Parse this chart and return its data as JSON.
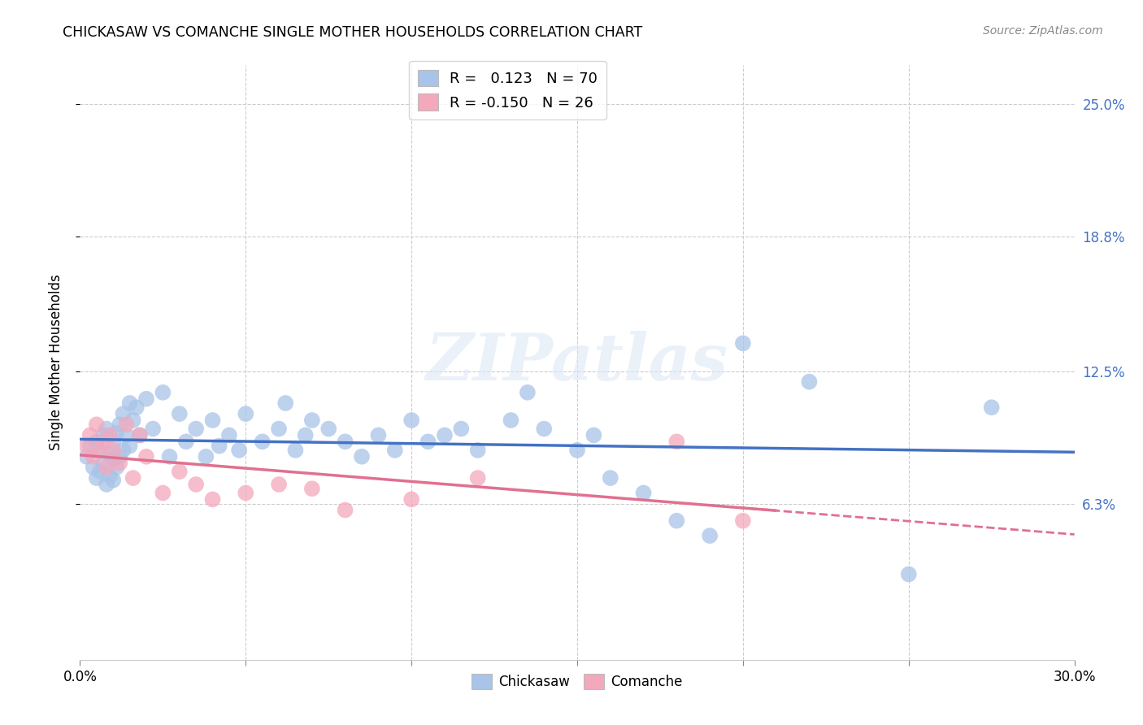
{
  "title": "CHICKASAW VS COMANCHE SINGLE MOTHER HOUSEHOLDS CORRELATION CHART",
  "source": "Source: ZipAtlas.com",
  "ylabel": "Single Mother Households",
  "ytick_labels": [
    "6.3%",
    "12.5%",
    "18.8%",
    "25.0%"
  ],
  "ytick_values": [
    0.063,
    0.125,
    0.188,
    0.25
  ],
  "xtick_values": [
    0.0,
    0.05,
    0.1,
    0.15,
    0.2,
    0.25,
    0.3
  ],
  "xmin": 0.0,
  "xmax": 0.3,
  "ymin": -0.01,
  "ymax": 0.268,
  "chickasaw_color": "#a8c4e8",
  "comanche_color": "#f4a8bc",
  "chickasaw_line_color": "#4472c4",
  "comanche_line_color": "#e07090",
  "r_chickasaw": 0.123,
  "n_chickasaw": 70,
  "r_comanche": -0.15,
  "n_comanche": 26,
  "watermark": "ZIPatlas",
  "chickasaw_x": [
    0.002,
    0.003,
    0.004,
    0.005,
    0.005,
    0.006,
    0.006,
    0.007,
    0.007,
    0.008,
    0.008,
    0.009,
    0.009,
    0.01,
    0.01,
    0.01,
    0.011,
    0.011,
    0.012,
    0.012,
    0.013,
    0.013,
    0.014,
    0.015,
    0.015,
    0.016,
    0.017,
    0.018,
    0.02,
    0.022,
    0.025,
    0.027,
    0.03,
    0.032,
    0.035,
    0.038,
    0.04,
    0.042,
    0.045,
    0.048,
    0.05,
    0.055,
    0.06,
    0.062,
    0.065,
    0.068,
    0.07,
    0.075,
    0.08,
    0.085,
    0.09,
    0.095,
    0.1,
    0.105,
    0.11,
    0.115,
    0.12,
    0.13,
    0.135,
    0.14,
    0.15,
    0.155,
    0.16,
    0.17,
    0.18,
    0.19,
    0.2,
    0.22,
    0.25,
    0.275
  ],
  "chickasaw_y": [
    0.085,
    0.09,
    0.08,
    0.092,
    0.075,
    0.088,
    0.078,
    0.095,
    0.082,
    0.098,
    0.072,
    0.086,
    0.076,
    0.092,
    0.084,
    0.074,
    0.096,
    0.08,
    0.1,
    0.085,
    0.105,
    0.088,
    0.095,
    0.11,
    0.09,
    0.102,
    0.108,
    0.095,
    0.112,
    0.098,
    0.115,
    0.085,
    0.105,
    0.092,
    0.098,
    0.085,
    0.102,
    0.09,
    0.095,
    0.088,
    0.105,
    0.092,
    0.098,
    0.11,
    0.088,
    0.095,
    0.102,
    0.098,
    0.092,
    0.085,
    0.095,
    0.088,
    0.102,
    0.092,
    0.095,
    0.098,
    0.088,
    0.102,
    0.115,
    0.098,
    0.088,
    0.095,
    0.075,
    0.068,
    0.055,
    0.048,
    0.138,
    0.12,
    0.03,
    0.108
  ],
  "comanche_x": [
    0.002,
    0.003,
    0.004,
    0.005,
    0.006,
    0.007,
    0.008,
    0.009,
    0.01,
    0.012,
    0.014,
    0.016,
    0.018,
    0.02,
    0.025,
    0.03,
    0.035,
    0.04,
    0.05,
    0.06,
    0.07,
    0.08,
    0.1,
    0.12,
    0.18,
    0.2
  ],
  "comanche_y": [
    0.09,
    0.095,
    0.085,
    0.1,
    0.088,
    0.092,
    0.08,
    0.095,
    0.088,
    0.082,
    0.1,
    0.075,
    0.095,
    0.085,
    0.068,
    0.078,
    0.072,
    0.065,
    0.068,
    0.072,
    0.07,
    0.06,
    0.065,
    0.075,
    0.092,
    0.055
  ]
}
